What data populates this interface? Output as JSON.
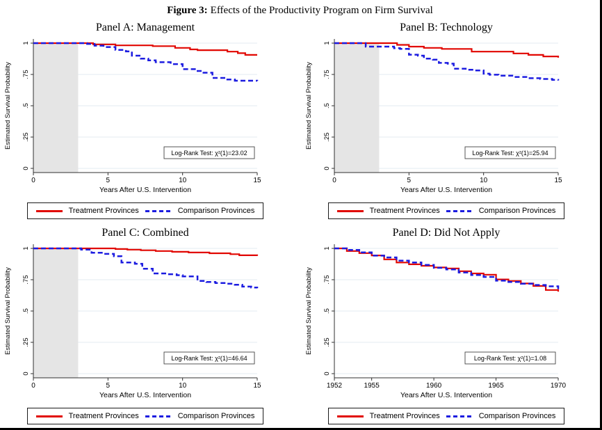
{
  "figure": {
    "label": "Figure 3:",
    "title": "Effects of the Productivity Program on Firm Survival"
  },
  "legend": {
    "treatment": "Treatment Provinces",
    "comparison": "Comparison Provinces"
  },
  "colors": {
    "treatment": "#e10600",
    "comparison": "#1c1ce0",
    "shade": "#e5e5e5",
    "grid": "#e3ebf0",
    "axis": "#303030"
  },
  "chart_data": [
    {
      "type": "line",
      "panel": "Panel A: Management",
      "logrank": "Log-Rank Test: χ²(1)=23.02",
      "xlabel": "Years After U.S. Intervention",
      "ylabel": "Estimated Survival Probability",
      "xlim": [
        0,
        15
      ],
      "ylim": [
        0,
        1
      ],
      "x_ticks": [
        {
          "v": 0,
          "label": "0"
        },
        {
          "v": 5,
          "label": "5"
        },
        {
          "v": 10,
          "label": "10"
        },
        {
          "v": 15,
          "label": "15"
        }
      ],
      "y_ticks": [
        {
          "v": 0,
          "label": "0"
        },
        {
          "v": 0.25,
          "label": ".25"
        },
        {
          "v": 0.5,
          "label": ".5"
        },
        {
          "v": 0.75,
          "label": ".75"
        },
        {
          "v": 1,
          "label": "1"
        }
      ],
      "shaded_region": [
        0,
        3
      ],
      "series": [
        {
          "name": "Treatment Provinces",
          "style": "solid",
          "color_key": "treatment",
          "steps": [
            [
              0,
              1
            ],
            [
              4,
              0.99
            ],
            [
              5.5,
              0.982
            ],
            [
              8,
              0.976
            ],
            [
              9.5,
              0.962
            ],
            [
              10.5,
              0.95
            ],
            [
              11,
              0.944
            ],
            [
              13,
              0.932
            ],
            [
              13.7,
              0.92
            ],
            [
              14.2,
              0.906
            ],
            [
              15,
              0.906
            ]
          ]
        },
        {
          "name": "Comparison Provinces",
          "style": "dashed",
          "color_key": "comparison",
          "steps": [
            [
              0,
              1
            ],
            [
              3.6,
              0.994
            ],
            [
              4.1,
              0.98
            ],
            [
              4.7,
              0.969
            ],
            [
              5.5,
              0.946
            ],
            [
              6.2,
              0.934
            ],
            [
              6.6,
              0.9
            ],
            [
              7.2,
              0.876
            ],
            [
              7.7,
              0.862
            ],
            [
              8.2,
              0.848
            ],
            [
              9.2,
              0.833
            ],
            [
              10,
              0.792
            ],
            [
              10.9,
              0.778
            ],
            [
              11.3,
              0.764
            ],
            [
              12,
              0.722
            ],
            [
              12.9,
              0.71
            ],
            [
              13.5,
              0.7
            ],
            [
              15,
              0.698
            ]
          ]
        }
      ]
    },
    {
      "type": "line",
      "panel": "Panel B: Technology",
      "logrank": "Log-Rank Test: χ²(1)=25.94",
      "xlabel": "Years After U.S. Intervention",
      "ylabel": "Estimated Survival Probability",
      "xlim": [
        0,
        15
      ],
      "ylim": [
        0,
        1
      ],
      "x_ticks": [
        {
          "v": 0,
          "label": "0"
        },
        {
          "v": 5,
          "label": "5"
        },
        {
          "v": 10,
          "label": "10"
        },
        {
          "v": 15,
          "label": "15"
        }
      ],
      "y_ticks": [
        {
          "v": 0,
          "label": "0"
        },
        {
          "v": 0.25,
          "label": ".25"
        },
        {
          "v": 0.5,
          "label": ".5"
        },
        {
          "v": 0.75,
          "label": ".75"
        },
        {
          "v": 1,
          "label": "1"
        }
      ],
      "shaded_region": [
        0,
        3
      ],
      "series": [
        {
          "name": "Treatment Provinces",
          "style": "solid",
          "color_key": "treatment",
          "steps": [
            [
              0,
              1
            ],
            [
              4.2,
              0.986
            ],
            [
              5,
              0.972
            ],
            [
              6,
              0.962
            ],
            [
              7.2,
              0.954
            ],
            [
              9.2,
              0.932
            ],
            [
              12,
              0.918
            ],
            [
              13,
              0.906
            ],
            [
              14,
              0.894
            ],
            [
              15,
              0.884
            ]
          ]
        },
        {
          "name": "Comparison Provinces",
          "style": "dashed",
          "color_key": "comparison",
          "steps": [
            [
              0,
              1
            ],
            [
              2.1,
              0.972
            ],
            [
              4,
              0.96
            ],
            [
              4.4,
              0.954
            ],
            [
              5,
              0.908
            ],
            [
              5.6,
              0.9
            ],
            [
              6,
              0.876
            ],
            [
              6.6,
              0.868
            ],
            [
              7,
              0.842
            ],
            [
              7.6,
              0.836
            ],
            [
              8,
              0.796
            ],
            [
              8.8,
              0.788
            ],
            [
              9.4,
              0.782
            ],
            [
              10,
              0.756
            ],
            [
              10.4,
              0.748
            ],
            [
              11,
              0.74
            ],
            [
              12,
              0.73
            ],
            [
              13,
              0.72
            ],
            [
              13.8,
              0.714
            ],
            [
              14.6,
              0.707
            ],
            [
              15,
              0.702
            ]
          ]
        }
      ]
    },
    {
      "type": "line",
      "panel": "Panel C: Combined",
      "logrank": "Log-Rank Test: χ²(1)=46.64",
      "xlabel": "Years After U.S. Intervention",
      "ylabel": "Estimated Survival Probability",
      "xlim": [
        0,
        15
      ],
      "ylim": [
        0,
        1
      ],
      "x_ticks": [
        {
          "v": 0,
          "label": "0"
        },
        {
          "v": 5,
          "label": "5"
        },
        {
          "v": 10,
          "label": "10"
        },
        {
          "v": 15,
          "label": "15"
        }
      ],
      "y_ticks": [
        {
          "v": 0,
          "label": "0"
        },
        {
          "v": 0.25,
          "label": ".25"
        },
        {
          "v": 0.5,
          "label": ".5"
        },
        {
          "v": 0.75,
          "label": ".75"
        },
        {
          "v": 1,
          "label": "1"
        }
      ],
      "shaded_region": [
        0,
        3
      ],
      "series": [
        {
          "name": "Treatment Provinces",
          "style": "solid",
          "color_key": "treatment",
          "steps": [
            [
              0,
              1
            ],
            [
              5.5,
              0.995
            ],
            [
              6.3,
              0.99
            ],
            [
              7.2,
              0.985
            ],
            [
              8.2,
              0.979
            ],
            [
              9.3,
              0.973
            ],
            [
              10.4,
              0.967
            ],
            [
              11.8,
              0.961
            ],
            [
              13.2,
              0.954
            ],
            [
              13.8,
              0.945
            ],
            [
              15,
              0.94
            ]
          ]
        },
        {
          "name": "Comparison Provinces",
          "style": "dashed",
          "color_key": "comparison",
          "steps": [
            [
              0,
              1
            ],
            [
              3.2,
              0.99
            ],
            [
              3.9,
              0.965
            ],
            [
              4.7,
              0.956
            ],
            [
              5.4,
              0.937
            ],
            [
              5.9,
              0.887
            ],
            [
              6.8,
              0.877
            ],
            [
              7.3,
              0.838
            ],
            [
              8,
              0.8
            ],
            [
              9,
              0.794
            ],
            [
              9.6,
              0.786
            ],
            [
              10,
              0.776
            ],
            [
              11,
              0.74
            ],
            [
              11.6,
              0.732
            ],
            [
              12.2,
              0.724
            ],
            [
              12.9,
              0.718
            ],
            [
              13.5,
              0.71
            ],
            [
              14,
              0.695
            ],
            [
              14.6,
              0.687
            ],
            [
              15,
              0.682
            ]
          ]
        }
      ]
    },
    {
      "type": "line",
      "panel": "Panel D: Did Not Apply",
      "logrank": "Log-Rank Test: χ²(1)=1.08",
      "xlabel": "Years After U.S. Intervention",
      "ylabel": "Estimated Survival Probability",
      "xlim": [
        1952,
        1970
      ],
      "ylim": [
        0,
        1
      ],
      "x_ticks": [
        {
          "v": 1952,
          "label": "1952"
        },
        {
          "v": 1955,
          "label": "1955"
        },
        {
          "v": 1960,
          "label": "1960"
        },
        {
          "v": 1965,
          "label": "1965"
        },
        {
          "v": 1970,
          "label": "1970"
        }
      ],
      "y_ticks": [
        {
          "v": 0,
          "label": "0"
        },
        {
          "v": 0.25,
          "label": ".25"
        },
        {
          "v": 0.5,
          "label": ".5"
        },
        {
          "v": 0.75,
          "label": ".75"
        },
        {
          "v": 1,
          "label": "1"
        }
      ],
      "shaded_region": null,
      "series": [
        {
          "name": "Treatment Provinces",
          "style": "solid",
          "color_key": "treatment",
          "steps": [
            [
              1952,
              1
            ],
            [
              1953,
              0.979
            ],
            [
              1954,
              0.962
            ],
            [
              1955,
              0.944
            ],
            [
              1956,
              0.912
            ],
            [
              1957,
              0.887
            ],
            [
              1958,
              0.873
            ],
            [
              1959,
              0.861
            ],
            [
              1960,
              0.848
            ],
            [
              1961,
              0.84
            ],
            [
              1962,
              0.818
            ],
            [
              1963,
              0.8
            ],
            [
              1964,
              0.79
            ],
            [
              1965,
              0.752
            ],
            [
              1966,
              0.74
            ],
            [
              1967,
              0.72
            ],
            [
              1968,
              0.7
            ],
            [
              1969,
              0.668
            ],
            [
              1970,
              0.655
            ]
          ]
        },
        {
          "name": "Comparison Provinces",
          "style": "dashed",
          "color_key": "comparison",
          "steps": [
            [
              1952,
              1
            ],
            [
              1953,
              0.988
            ],
            [
              1954,
              0.968
            ],
            [
              1955,
              0.942
            ],
            [
              1956,
              0.928
            ],
            [
              1957,
              0.902
            ],
            [
              1958,
              0.888
            ],
            [
              1959,
              0.868
            ],
            [
              1960,
              0.845
            ],
            [
              1961,
              0.832
            ],
            [
              1962,
              0.808
            ],
            [
              1963,
              0.788
            ],
            [
              1964,
              0.772
            ],
            [
              1965,
              0.742
            ],
            [
              1966,
              0.732
            ],
            [
              1967,
              0.718
            ],
            [
              1968,
              0.708
            ],
            [
              1969,
              0.697
            ],
            [
              1970,
              0.675
            ]
          ]
        }
      ]
    }
  ]
}
